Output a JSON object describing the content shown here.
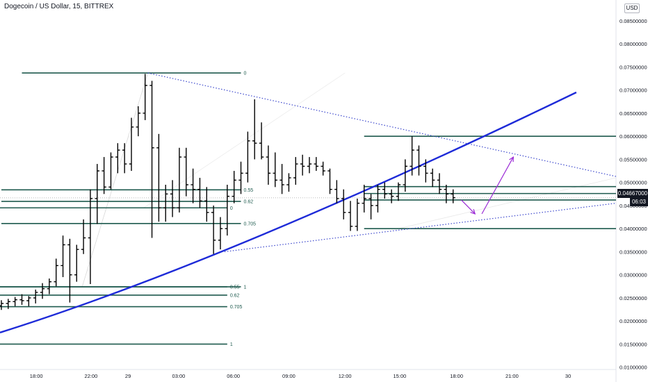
{
  "chart_data": {
    "type": "ohlc",
    "title": "Dogecoin / US Dollar, 15, BITTREX",
    "currency_label": "USD",
    "y_axis": {
      "ylim": [
        0.0095,
        0.0895
      ],
      "ticks": [
        0.085,
        0.08,
        0.075,
        0.07,
        0.065,
        0.06,
        0.055,
        0.05,
        0.045,
        0.04,
        0.035,
        0.03,
        0.025,
        0.02,
        0.015,
        0.01
      ],
      "tick_labels": [
        "0.08500000",
        "0.08000000",
        "0.07500000",
        "0.07000000",
        "0.06500000",
        "0.06000000",
        "0.05500000",
        "0.05000000",
        "0.04500000",
        "0.04000000",
        "0.03500000",
        "0.03000000",
        "0.02500000",
        "0.02000000",
        "0.01500000",
        "0.01000000"
      ]
    },
    "x_axis": {
      "labels": [
        {
          "t": 16.05,
          "text": "18:00"
        },
        {
          "t": 20.05,
          "text": "22:00"
        },
        {
          "t": 22.75,
          "text": "29"
        },
        {
          "t": 26.45,
          "text": "03:00"
        },
        {
          "t": 30.45,
          "text": "06:00"
        },
        {
          "t": 34.5,
          "text": "09:00"
        },
        {
          "t": 38.6,
          "text": "12:00"
        },
        {
          "t": 42.6,
          "text": "15:00"
        },
        {
          "t": 46.75,
          "text": "18:00"
        },
        {
          "t": 50.8,
          "text": "21:00"
        },
        {
          "t": 54.9,
          "text": "30"
        }
      ],
      "range": [
        13.4,
        58.4
      ]
    },
    "last_price": "0.04667000",
    "countdown": "06:03",
    "series": [
      {
        "x": 13.5,
        "o": 0.0233,
        "h": 0.0245,
        "l": 0.0224,
        "c": 0.0238
      },
      {
        "x": 14.0,
        "o": 0.0238,
        "h": 0.0248,
        "l": 0.0226,
        "c": 0.0242
      },
      {
        "x": 14.5,
        "o": 0.0242,
        "h": 0.0252,
        "l": 0.0232,
        "c": 0.0246
      },
      {
        "x": 15.0,
        "o": 0.0246,
        "h": 0.0258,
        "l": 0.0235,
        "c": 0.0244
      },
      {
        "x": 15.5,
        "o": 0.0244,
        "h": 0.0254,
        "l": 0.0232,
        "c": 0.025
      },
      {
        "x": 16.0,
        "o": 0.025,
        "h": 0.0268,
        "l": 0.0238,
        "c": 0.0262
      },
      {
        "x": 16.5,
        "o": 0.0262,
        "h": 0.0282,
        "l": 0.0248,
        "c": 0.027
      },
      {
        "x": 17.0,
        "o": 0.027,
        "h": 0.0292,
        "l": 0.0258,
        "c": 0.0285
      },
      {
        "x": 17.5,
        "o": 0.0285,
        "h": 0.0335,
        "l": 0.0275,
        "c": 0.032
      },
      {
        "x": 18.0,
        "o": 0.032,
        "h": 0.0385,
        "l": 0.0295,
        "c": 0.0365
      },
      {
        "x": 18.5,
        "o": 0.0365,
        "h": 0.0378,
        "l": 0.024,
        "c": 0.03
      },
      {
        "x": 19.0,
        "o": 0.03,
        "h": 0.0365,
        "l": 0.0285,
        "c": 0.0355
      },
      {
        "x": 19.5,
        "o": 0.0355,
        "h": 0.042,
        "l": 0.0345,
        "c": 0.038
      },
      {
        "x": 20.0,
        "o": 0.038,
        "h": 0.0485,
        "l": 0.028,
        "c": 0.0465
      },
      {
        "x": 20.5,
        "o": 0.0465,
        "h": 0.054,
        "l": 0.041,
        "c": 0.0525
      },
      {
        "x": 21.0,
        "o": 0.0525,
        "h": 0.0555,
        "l": 0.0475,
        "c": 0.049
      },
      {
        "x": 21.5,
        "o": 0.049,
        "h": 0.0565,
        "l": 0.0485,
        "c": 0.0555
      },
      {
        "x": 22.0,
        "o": 0.0555,
        "h": 0.0585,
        "l": 0.052,
        "c": 0.057
      },
      {
        "x": 22.5,
        "o": 0.057,
        "h": 0.0585,
        "l": 0.052,
        "c": 0.054
      },
      {
        "x": 23.0,
        "o": 0.054,
        "h": 0.064,
        "l": 0.0525,
        "c": 0.062
      },
      {
        "x": 23.5,
        "o": 0.062,
        "h": 0.0665,
        "l": 0.06,
        "c": 0.065
      },
      {
        "x": 24.0,
        "o": 0.065,
        "h": 0.0735,
        "l": 0.0635,
        "c": 0.071
      },
      {
        "x": 24.5,
        "o": 0.071,
        "h": 0.072,
        "l": 0.038,
        "c": 0.0575
      },
      {
        "x": 25.0,
        "o": 0.0575,
        "h": 0.0605,
        "l": 0.0415,
        "c": 0.0445
      },
      {
        "x": 25.5,
        "o": 0.0445,
        "h": 0.0495,
        "l": 0.0415,
        "c": 0.0475
      },
      {
        "x": 26.0,
        "o": 0.0475,
        "h": 0.0505,
        "l": 0.0425,
        "c": 0.0445
      },
      {
        "x": 26.5,
        "o": 0.0445,
        "h": 0.0575,
        "l": 0.0435,
        "c": 0.0555
      },
      {
        "x": 27.0,
        "o": 0.0555,
        "h": 0.0575,
        "l": 0.047,
        "c": 0.0495
      },
      {
        "x": 27.5,
        "o": 0.0495,
        "h": 0.053,
        "l": 0.0455,
        "c": 0.0485
      },
      {
        "x": 28.0,
        "o": 0.0485,
        "h": 0.051,
        "l": 0.0445,
        "c": 0.046
      },
      {
        "x": 28.5,
        "o": 0.046,
        "h": 0.049,
        "l": 0.0415,
        "c": 0.0435
      },
      {
        "x": 29.0,
        "o": 0.0435,
        "h": 0.045,
        "l": 0.0345,
        "c": 0.0375
      },
      {
        "x": 29.5,
        "o": 0.0375,
        "h": 0.0425,
        "l": 0.0355,
        "c": 0.04
      },
      {
        "x": 30.0,
        "o": 0.04,
        "h": 0.0495,
        "l": 0.0385,
        "c": 0.047
      },
      {
        "x": 30.5,
        "o": 0.047,
        "h": 0.0525,
        "l": 0.0455,
        "c": 0.0505
      },
      {
        "x": 31.0,
        "o": 0.0505,
        "h": 0.0545,
        "l": 0.0475,
        "c": 0.052
      },
      {
        "x": 31.5,
        "o": 0.052,
        "h": 0.061,
        "l": 0.05,
        "c": 0.059
      },
      {
        "x": 32.0,
        "o": 0.059,
        "h": 0.068,
        "l": 0.055,
        "c": 0.0585
      },
      {
        "x": 32.5,
        "o": 0.0585,
        "h": 0.063,
        "l": 0.055,
        "c": 0.0555
      },
      {
        "x": 33.0,
        "o": 0.0555,
        "h": 0.058,
        "l": 0.0495,
        "c": 0.052
      },
      {
        "x": 33.5,
        "o": 0.052,
        "h": 0.0565,
        "l": 0.049,
        "c": 0.0505
      },
      {
        "x": 34.0,
        "o": 0.0505,
        "h": 0.054,
        "l": 0.0475,
        "c": 0.0495
      },
      {
        "x": 34.5,
        "o": 0.0495,
        "h": 0.052,
        "l": 0.048,
        "c": 0.051
      },
      {
        "x": 35.0,
        "o": 0.051,
        "h": 0.0555,
        "l": 0.0495,
        "c": 0.054
      },
      {
        "x": 35.5,
        "o": 0.054,
        "h": 0.056,
        "l": 0.0515,
        "c": 0.0535
      },
      {
        "x": 36.0,
        "o": 0.0535,
        "h": 0.0555,
        "l": 0.052,
        "c": 0.054
      },
      {
        "x": 36.5,
        "o": 0.054,
        "h": 0.0555,
        "l": 0.0525,
        "c": 0.0535
      },
      {
        "x": 37.0,
        "o": 0.0535,
        "h": 0.0545,
        "l": 0.0515,
        "c": 0.0525
      },
      {
        "x": 37.5,
        "o": 0.0525,
        "h": 0.053,
        "l": 0.0475,
        "c": 0.0485
      },
      {
        "x": 38.0,
        "o": 0.0485,
        "h": 0.0505,
        "l": 0.0455,
        "c": 0.0465
      },
      {
        "x": 38.5,
        "o": 0.0465,
        "h": 0.0485,
        "l": 0.042,
        "c": 0.0435
      },
      {
        "x": 39.0,
        "o": 0.0435,
        "h": 0.046,
        "l": 0.0395,
        "c": 0.0405
      },
      {
        "x": 39.5,
        "o": 0.0405,
        "h": 0.0465,
        "l": 0.0395,
        "c": 0.0455
      },
      {
        "x": 40.0,
        "o": 0.0455,
        "h": 0.0495,
        "l": 0.0435,
        "c": 0.0465
      },
      {
        "x": 40.5,
        "o": 0.0465,
        "h": 0.0475,
        "l": 0.042,
        "c": 0.045
      },
      {
        "x": 41.0,
        "o": 0.045,
        "h": 0.0495,
        "l": 0.0435,
        "c": 0.0485
      },
      {
        "x": 41.5,
        "o": 0.0485,
        "h": 0.05,
        "l": 0.0465,
        "c": 0.0475
      },
      {
        "x": 42.0,
        "o": 0.0475,
        "h": 0.0485,
        "l": 0.0455,
        "c": 0.047
      },
      {
        "x": 42.5,
        "o": 0.047,
        "h": 0.05,
        "l": 0.046,
        "c": 0.0495
      },
      {
        "x": 43.0,
        "o": 0.0495,
        "h": 0.055,
        "l": 0.048,
        "c": 0.0535
      },
      {
        "x": 43.5,
        "o": 0.0535,
        "h": 0.06,
        "l": 0.0515,
        "c": 0.057
      },
      {
        "x": 44.0,
        "o": 0.057,
        "h": 0.058,
        "l": 0.0515,
        "c": 0.0535
      },
      {
        "x": 44.5,
        "o": 0.0535,
        "h": 0.055,
        "l": 0.05,
        "c": 0.052
      },
      {
        "x": 45.0,
        "o": 0.052,
        "h": 0.053,
        "l": 0.049,
        "c": 0.0505
      },
      {
        "x": 45.5,
        "o": 0.0505,
        "h": 0.052,
        "l": 0.0475,
        "c": 0.0485
      },
      {
        "x": 46.0,
        "o": 0.0485,
        "h": 0.0495,
        "l": 0.0455,
        "c": 0.0475
      },
      {
        "x": 46.5,
        "o": 0.0475,
        "h": 0.0485,
        "l": 0.0455,
        "c": 0.0467
      }
    ],
    "levels": [
      {
        "x1": 15.0,
        "x2": 31.0,
        "y": 0.0737,
        "label": "0"
      },
      {
        "x1": 13.5,
        "x2": 31.0,
        "y": 0.0484,
        "label": "0.55"
      },
      {
        "x1": 13.5,
        "x2": 31.0,
        "y": 0.0459,
        "label": "0.62"
      },
      {
        "x1": 13.5,
        "x2": 31.0,
        "y": 0.0411,
        "label": "0.705"
      },
      {
        "x1": 13.4,
        "x2": 31.0,
        "y": 0.0274,
        "label": "1"
      },
      {
        "x1": 13.4,
        "x2": 30.0,
        "y": 0.0445,
        "label": "0"
      },
      {
        "x1": 13.4,
        "x2": 30.0,
        "y": 0.0274,
        "label": "0.55"
      },
      {
        "x1": 13.4,
        "x2": 30.0,
        "y": 0.0256,
        "label": "0.62"
      },
      {
        "x1": 13.4,
        "x2": 30.0,
        "y": 0.0231,
        "label": "0.705"
      },
      {
        "x1": 13.4,
        "x2": 30.0,
        "y": 0.015,
        "label": "1"
      },
      {
        "x1": 40.0,
        "x2": 58.4,
        "y": 0.06,
        "label": ""
      },
      {
        "x1": 40.0,
        "x2": 58.4,
        "y": 0.0491,
        "label": ""
      },
      {
        "x1": 40.0,
        "x2": 58.4,
        "y": 0.0476,
        "label": ""
      },
      {
        "x1": 40.0,
        "x2": 58.4,
        "y": 0.0462,
        "label": ""
      },
      {
        "x1": 40.0,
        "x2": 58.4,
        "y": 0.04,
        "label": ""
      }
    ],
    "colors": {
      "level": "#1e5a4e",
      "level_label": "#1e5a4e",
      "trend": "#1e2bd8",
      "dotted": "#3a46cc",
      "arrow": "#9b2bd6",
      "bars": "#000000",
      "grid": "#f0f3fa",
      "axis_text": "#131722",
      "last_price_line": "#b0b0b0"
    }
  }
}
